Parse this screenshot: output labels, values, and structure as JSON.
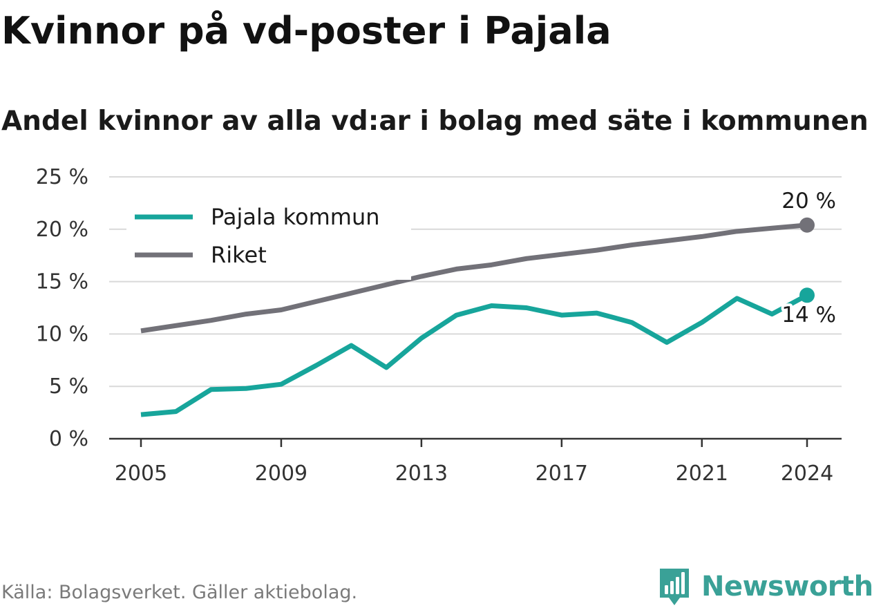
{
  "title": "Kvinnor på vd-poster i Pajala",
  "subtitle": "Andel kvinnor av alla vd:ar i bolag med säte i kommunen",
  "source": "Källa: Bolagsverket. Gäller aktiebolag.",
  "brand": {
    "name": "Newsworthy",
    "logo_icon": "bar-chart-logo-icon",
    "color": "#3aa197"
  },
  "colors": {
    "pajala": "#17a59b",
    "riket": "#727178",
    "grid": "#d9d9d9",
    "axis": "#333333"
  },
  "chart_data": {
    "type": "line",
    "x": [
      2005,
      2006,
      2007,
      2008,
      2009,
      2010,
      2011,
      2012,
      2013,
      2014,
      2015,
      2016,
      2017,
      2018,
      2019,
      2020,
      2021,
      2022,
      2023,
      2024
    ],
    "x_ticks": [
      "2005",
      "2009",
      "2013",
      "2017",
      "2021",
      "2024"
    ],
    "y_ticks": [
      "0 %",
      "5 %",
      "10 %",
      "15 %",
      "20 %",
      "25 %"
    ],
    "ylim": [
      0,
      25
    ],
    "y_unit": "%",
    "grid": "horizontal",
    "legend_position": "top-left",
    "series": [
      {
        "name": "Pajala kommun",
        "color": "#17a59b",
        "values": [
          2.3,
          2.6,
          4.7,
          4.8,
          5.2,
          7.0,
          8.9,
          6.8,
          9.6,
          11.8,
          12.7,
          12.5,
          11.8,
          12.0,
          11.1,
          9.2,
          11.1,
          13.4,
          11.9,
          13.7
        ],
        "end_label": "14 %"
      },
      {
        "name": "Riket",
        "color": "#727178",
        "values": [
          10.3,
          10.8,
          11.3,
          11.9,
          12.3,
          13.1,
          13.9,
          14.7,
          15.5,
          16.2,
          16.6,
          17.2,
          17.6,
          18.0,
          18.5,
          18.9,
          19.3,
          19.8,
          20.1,
          20.4
        ],
        "end_label": "20 %"
      }
    ]
  }
}
